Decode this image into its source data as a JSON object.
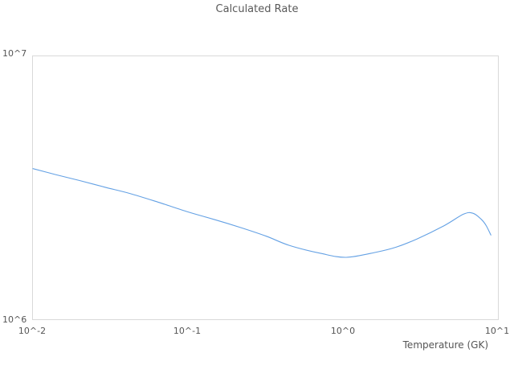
{
  "chart_data": {
    "type": "line",
    "title": "Calculated Rate",
    "xlabel": "Temperature (GK)",
    "ylabel": "",
    "x_scale": "log",
    "y_scale": "log",
    "xlim": [
      0.01,
      10
    ],
    "ylim": [
      1000000,
      10000000
    ],
    "x_tick_labels": [
      "10^-2",
      "10^-1",
      "10^0",
      "10^1"
    ],
    "y_tick_labels": [
      "10^6",
      "10^7"
    ],
    "grid": false,
    "legend": "none",
    "line_color": "#64a1e4",
    "text_color": "#595959",
    "border_color": "#d9d9d9",
    "series": [
      {
        "name": "Calculated Rate",
        "x": [
          0.01,
          0.014,
          0.02,
          0.029,
          0.042,
          0.064,
          0.1,
          0.15,
          0.22,
          0.32,
          0.45,
          0.72,
          1.05,
          1.65,
          2.2,
          3.0,
          4.5,
          6.0,
          6.9,
          7.8,
          8.4,
          9.0
        ],
        "y": [
          3740000,
          3550000,
          3370000,
          3180000,
          3010000,
          2790000,
          2560000,
          2390000,
          2230000,
          2070000,
          1910000,
          1780000,
          1720000,
          1800000,
          1880000,
          2020000,
          2270000,
          2510000,
          2530000,
          2400000,
          2270000,
          2090000
        ]
      }
    ]
  }
}
